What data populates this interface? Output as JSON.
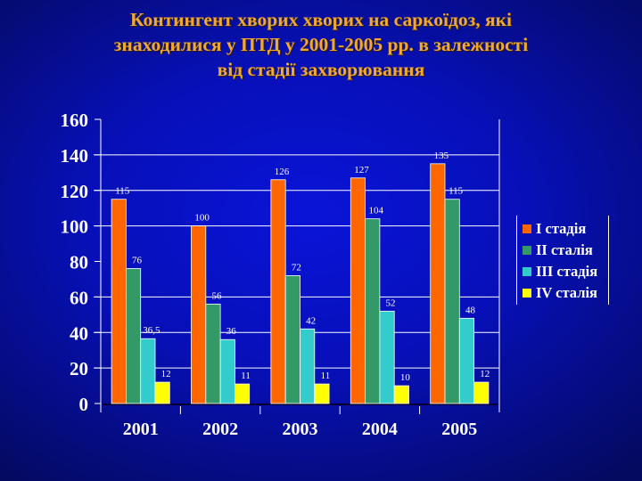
{
  "slide": {
    "title_lines": [
      "Контингент хворих хворих на саркоїдоз, які",
      "знаходилися у  ПТД  у 2001-2005 рр. в залежності",
      "від стадії захворювання"
    ]
  },
  "colors": {
    "title_text": "#f0a830",
    "axis_text": "#ffffff",
    "gridline": "#ffffff"
  },
  "legend": {
    "items": [
      {
        "label": "I стадія",
        "color": "#ff6600"
      },
      {
        "label": "II сталія",
        "color": "#339966"
      },
      {
        "label": "III стадія",
        "color": "#33cccc"
      },
      {
        "label": "IV сталія",
        "color": "#ffff00"
      }
    ]
  },
  "chart_data": {
    "type": "bar",
    "title": "Контингент хворих хворих на саркоїдоз, які знаходилися у ПТД у 2001-2005 рр. в залежності від стадії захворювання",
    "xlabel": "",
    "ylabel": "",
    "categories": [
      "2001",
      "2002",
      "2003",
      "2004",
      "2005"
    ],
    "series": [
      {
        "name": "I стадія",
        "color": "#ff6600",
        "values": [
          115,
          100,
          126,
          127,
          135
        ],
        "labels": [
          "115",
          "100",
          "126",
          "127",
          "135"
        ]
      },
      {
        "name": "II сталія",
        "color": "#339966",
        "values": [
          76,
          56,
          72,
          104,
          115
        ],
        "labels": [
          "76",
          "56",
          "72",
          "104",
          "115"
        ]
      },
      {
        "name": "III стадія",
        "color": "#33cccc",
        "values": [
          36.5,
          36,
          42,
          52,
          48
        ],
        "labels": [
          "36,5",
          "36",
          "42",
          "52",
          "48"
        ]
      },
      {
        "name": "IV сталія",
        "color": "#ffff00",
        "values": [
          12,
          11,
          11,
          10,
          12
        ],
        "labels": [
          "12",
          "11",
          "11",
          "10",
          "12"
        ]
      }
    ],
    "ylim": [
      0,
      160
    ],
    "yticks": [
      0,
      20,
      40,
      60,
      80,
      100,
      120,
      140,
      160
    ],
    "ytick_labels": [
      "0",
      "20",
      "40",
      "60",
      "80",
      "100",
      "120",
      "140",
      "160"
    ],
    "gridlines_at": [
      20,
      40,
      60,
      100,
      120,
      140
    ],
    "grid": true,
    "data_labels": true,
    "legend_position": "right"
  }
}
